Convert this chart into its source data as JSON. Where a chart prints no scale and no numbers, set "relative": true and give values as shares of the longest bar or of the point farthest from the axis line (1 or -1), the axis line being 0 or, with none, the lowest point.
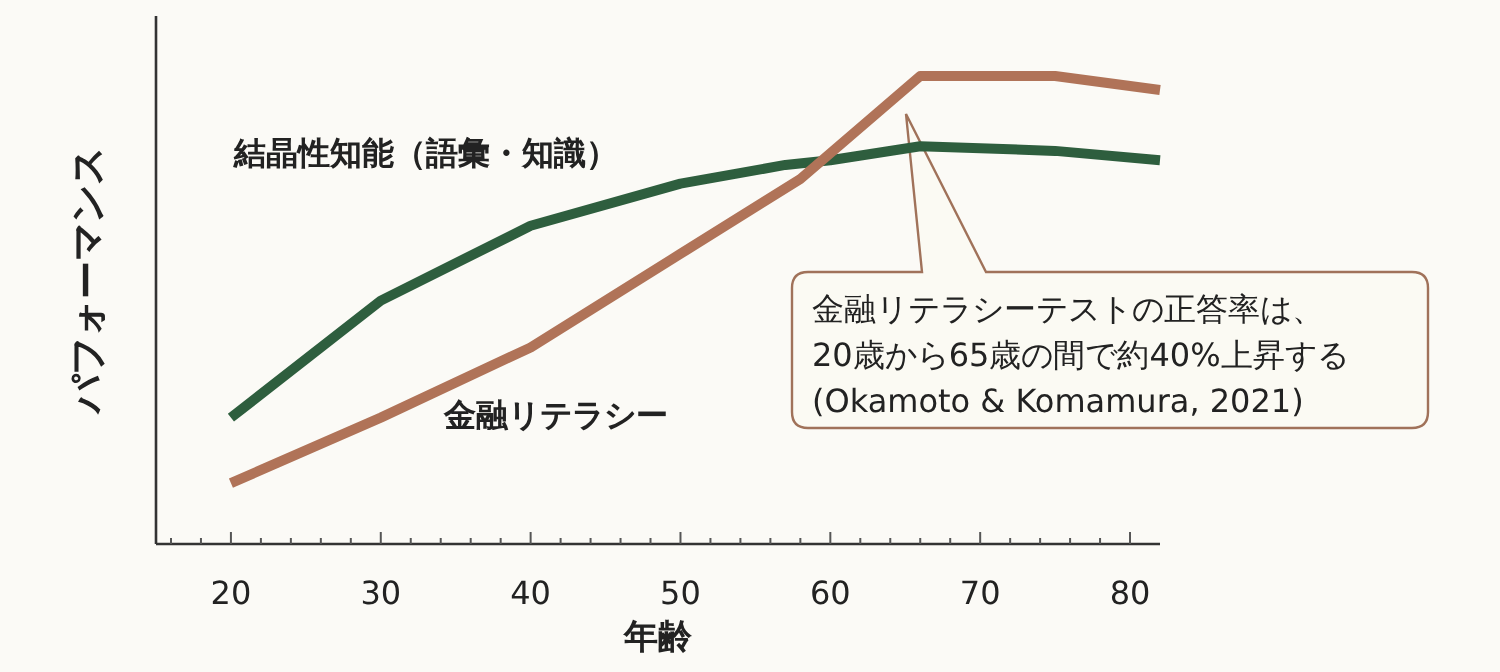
{
  "chart_data": {
    "type": "line",
    "relative": true,
    "xlabel": "年齢",
    "ylabel": "パフォーマンス",
    "xlim": [
      15,
      82
    ],
    "xticks": [
      {
        "value": 16,
        "label": null
      },
      {
        "value": 18,
        "label": null
      },
      20,
      {
        "value": 22,
        "label": null
      },
      {
        "value": 24,
        "label": null
      },
      {
        "value": 26,
        "label": null
      },
      {
        "value": 28,
        "label": null
      },
      30,
      {
        "value": 32,
        "label": null
      },
      {
        "value": 34,
        "label": null
      },
      {
        "value": 36,
        "label": null
      },
      {
        "value": 38,
        "label": null
      },
      40,
      {
        "value": 42,
        "label": null
      },
      {
        "value": 44,
        "label": null
      },
      {
        "value": 46,
        "label": null
      },
      {
        "value": 48,
        "label": null
      },
      50,
      {
        "value": 52,
        "label": null
      },
      {
        "value": 54,
        "label": null
      },
      {
        "value": 56,
        "label": null
      },
      {
        "value": 58,
        "label": null
      },
      60,
      {
        "value": 62,
        "label": null
      },
      {
        "value": 64,
        "label": null
      },
      {
        "value": 66,
        "label": null
      },
      {
        "value": 68,
        "label": null
      },
      70,
      {
        "value": 72,
        "label": null
      },
      {
        "value": 74,
        "label": null
      },
      {
        "value": 76,
        "label": null
      },
      {
        "value": 78,
        "label": null
      },
      80
    ],
    "grid": false,
    "legend": false,
    "marker": "none",
    "line_style": "solid",
    "series": [
      {
        "name": "結晶性知能（語彙・知識）",
        "color": "#2e5e3e",
        "x": [
          20,
          30,
          40,
          50,
          57,
          60,
          66,
          75,
          82
        ],
        "values": [
          0.27,
          0.52,
          0.68,
          0.77,
          0.81,
          0.82,
          0.85,
          0.84,
          0.82
        ]
      },
      {
        "name": "金融リテラシー",
        "color": "#b07358",
        "x": [
          20,
          30,
          40,
          50,
          58,
          66,
          75,
          82
        ],
        "values": [
          0.13,
          0.27,
          0.42,
          0.62,
          0.78,
          1.0,
          1.0,
          0.97
        ]
      }
    ],
    "annotations": [
      "金融リテラシーテストの正答率は、\n20歳から65歳の間で約40%上昇する\n(Okamoto & Komamura, 2021)"
    ]
  }
}
